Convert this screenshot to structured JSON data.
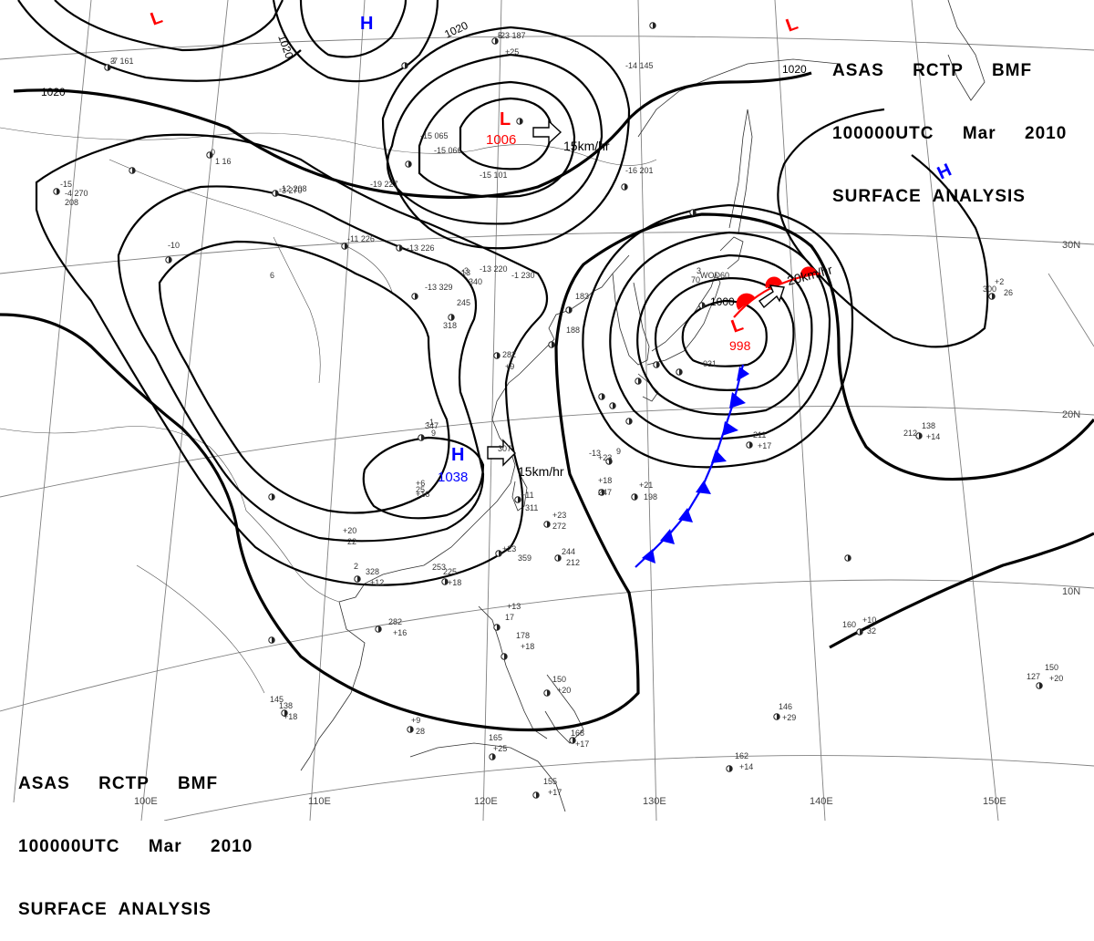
{
  "header": {
    "line1": "ASAS     RCTP     BMF",
    "line2": "100000UTC     Mar     2010",
    "line3": "SURFACE  ANALYSIS"
  },
  "isobar_labels": [
    "1020",
    "1020",
    "1020",
    "1020",
    "1000"
  ],
  "pressure_systems": [
    {
      "type": "L",
      "value": "1006",
      "color": "#ff0000"
    },
    {
      "type": "H",
      "value": "1038",
      "color": "#0000ff"
    },
    {
      "type": "L",
      "value": "998",
      "color": "#ff0000"
    },
    {
      "type": "L",
      "value": "",
      "color": "#ff0000"
    },
    {
      "type": "L",
      "value": "",
      "color": "#ff0000"
    },
    {
      "type": "H",
      "value": "",
      "color": "#0000ff"
    },
    {
      "type": "H",
      "value": "",
      "color": "#0000ff"
    }
  ],
  "motion_labels": [
    "15km/hr",
    "15km/hr",
    "20km/hr"
  ],
  "longitude_labels": [
    "110E",
    "120E",
    "130E",
    "140E",
    "150E",
    "100E"
  ],
  "latitude_labels": [
    "30N",
    "20N",
    "10N"
  ],
  "station_labels": [
    "-7 161",
    "-23 187",
    "+25",
    "-14 145",
    "-19 227",
    "-15 065",
    "-15 066",
    "-15 101",
    "-16 201",
    "-12 208",
    "-11 226",
    "-13 226",
    "-13 329",
    "245",
    "318",
    "-13 220",
    "-1 230",
    "282",
    "+9",
    "183",
    "188",
    "347",
    "307",
    "+11",
    "311",
    "+23",
    "272",
    "+23",
    "244",
    "212",
    "+18",
    "247",
    "+21",
    "198",
    "+23",
    "9",
    "211",
    "+17",
    "138",
    "+14",
    "212",
    "+2",
    "26",
    "300",
    "+20",
    "22",
    "328",
    "+12",
    "282",
    "+16",
    "225",
    "+18",
    "253",
    "+13",
    "17",
    "178",
    "+18",
    "150",
    "+20",
    "168",
    "+17",
    "165",
    "+25",
    "155",
    "+17",
    "146",
    "+29",
    "162",
    "+14",
    "150",
    "+20",
    "127",
    "+10",
    "32",
    "160",
    "+9",
    "28",
    "138",
    "+18",
    "145",
    "+16",
    "25",
    "359",
    "3",
    "WOD60",
    "70",
    "031",
    "0",
    "1 16",
    "-3 270",
    "-4 270",
    "208",
    "-15",
    "-10",
    "6",
    "-3",
    "340",
    "-13",
    "-1",
    "9",
    "2",
    "+6",
    "13",
    "3",
    "5"
  ],
  "colors": {
    "front": "#0000ff",
    "warm_front": "#ff0000",
    "isobar": "#000000",
    "grid": "#808080"
  }
}
